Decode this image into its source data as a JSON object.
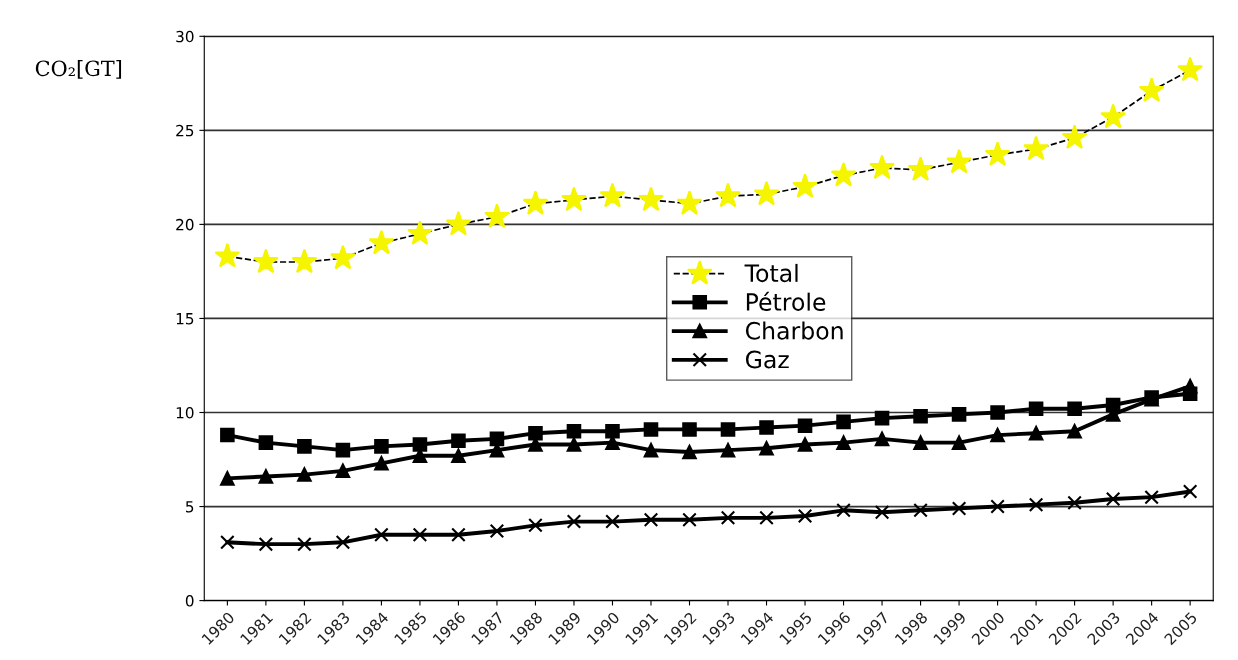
{
  "chart_data": {
    "type": "line",
    "ylabel": "CO₂[GT]",
    "categories": [
      "1980",
      "1981",
      "1982",
      "1983",
      "1984",
      "1985",
      "1986",
      "1987",
      "1988",
      "1989",
      "1990",
      "1991",
      "1992",
      "1993",
      "1994",
      "1995",
      "1996",
      "1997",
      "1998",
      "1999",
      "2000",
      "2001",
      "2002",
      "2003",
      "2004",
      "2005"
    ],
    "series": [
      {
        "name": "Total",
        "color": "#f5f500",
        "marker": "star",
        "line_style": "dashed",
        "values": [
          18.3,
          18.0,
          18.0,
          18.2,
          19.0,
          19.5,
          20.0,
          20.4,
          21.1,
          21.3,
          21.5,
          21.3,
          21.1,
          21.5,
          21.6,
          22.0,
          22.6,
          23.0,
          22.9,
          23.3,
          23.7,
          24.0,
          24.6,
          25.7,
          27.1,
          28.2
        ]
      },
      {
        "name": "Pétrole",
        "color": "#000000",
        "marker": "square",
        "line_style": "solid",
        "values": [
          8.8,
          8.4,
          8.2,
          8.0,
          8.2,
          8.3,
          8.5,
          8.6,
          8.9,
          9.0,
          9.0,
          9.1,
          9.1,
          9.1,
          9.2,
          9.3,
          9.5,
          9.7,
          9.8,
          9.9,
          10.0,
          10.2,
          10.2,
          10.4,
          10.8,
          11.0
        ]
      },
      {
        "name": "Charbon",
        "color": "#000000",
        "marker": "triangle",
        "line_style": "solid",
        "values": [
          6.5,
          6.6,
          6.7,
          6.9,
          7.3,
          7.7,
          7.7,
          8.0,
          8.3,
          8.3,
          8.4,
          8.0,
          7.9,
          8.0,
          8.1,
          8.3,
          8.4,
          8.6,
          8.4,
          8.4,
          8.8,
          8.9,
          9.0,
          9.9,
          10.7,
          11.4
        ]
      },
      {
        "name": "Gaz",
        "color": "#000000",
        "marker": "cross",
        "line_style": "solid",
        "values": [
          3.1,
          3.0,
          3.0,
          3.1,
          3.5,
          3.5,
          3.5,
          3.7,
          4.0,
          4.2,
          4.2,
          4.3,
          4.3,
          4.4,
          4.4,
          4.5,
          4.8,
          4.7,
          4.8,
          4.9,
          5.0,
          5.1,
          5.2,
          5.4,
          5.5,
          5.8
        ]
      }
    ],
    "ylim": [
      0,
      30
    ],
    "yticks": [
      0,
      5,
      10,
      15,
      20,
      25,
      30
    ],
    "grid": "y",
    "legend": "center"
  }
}
